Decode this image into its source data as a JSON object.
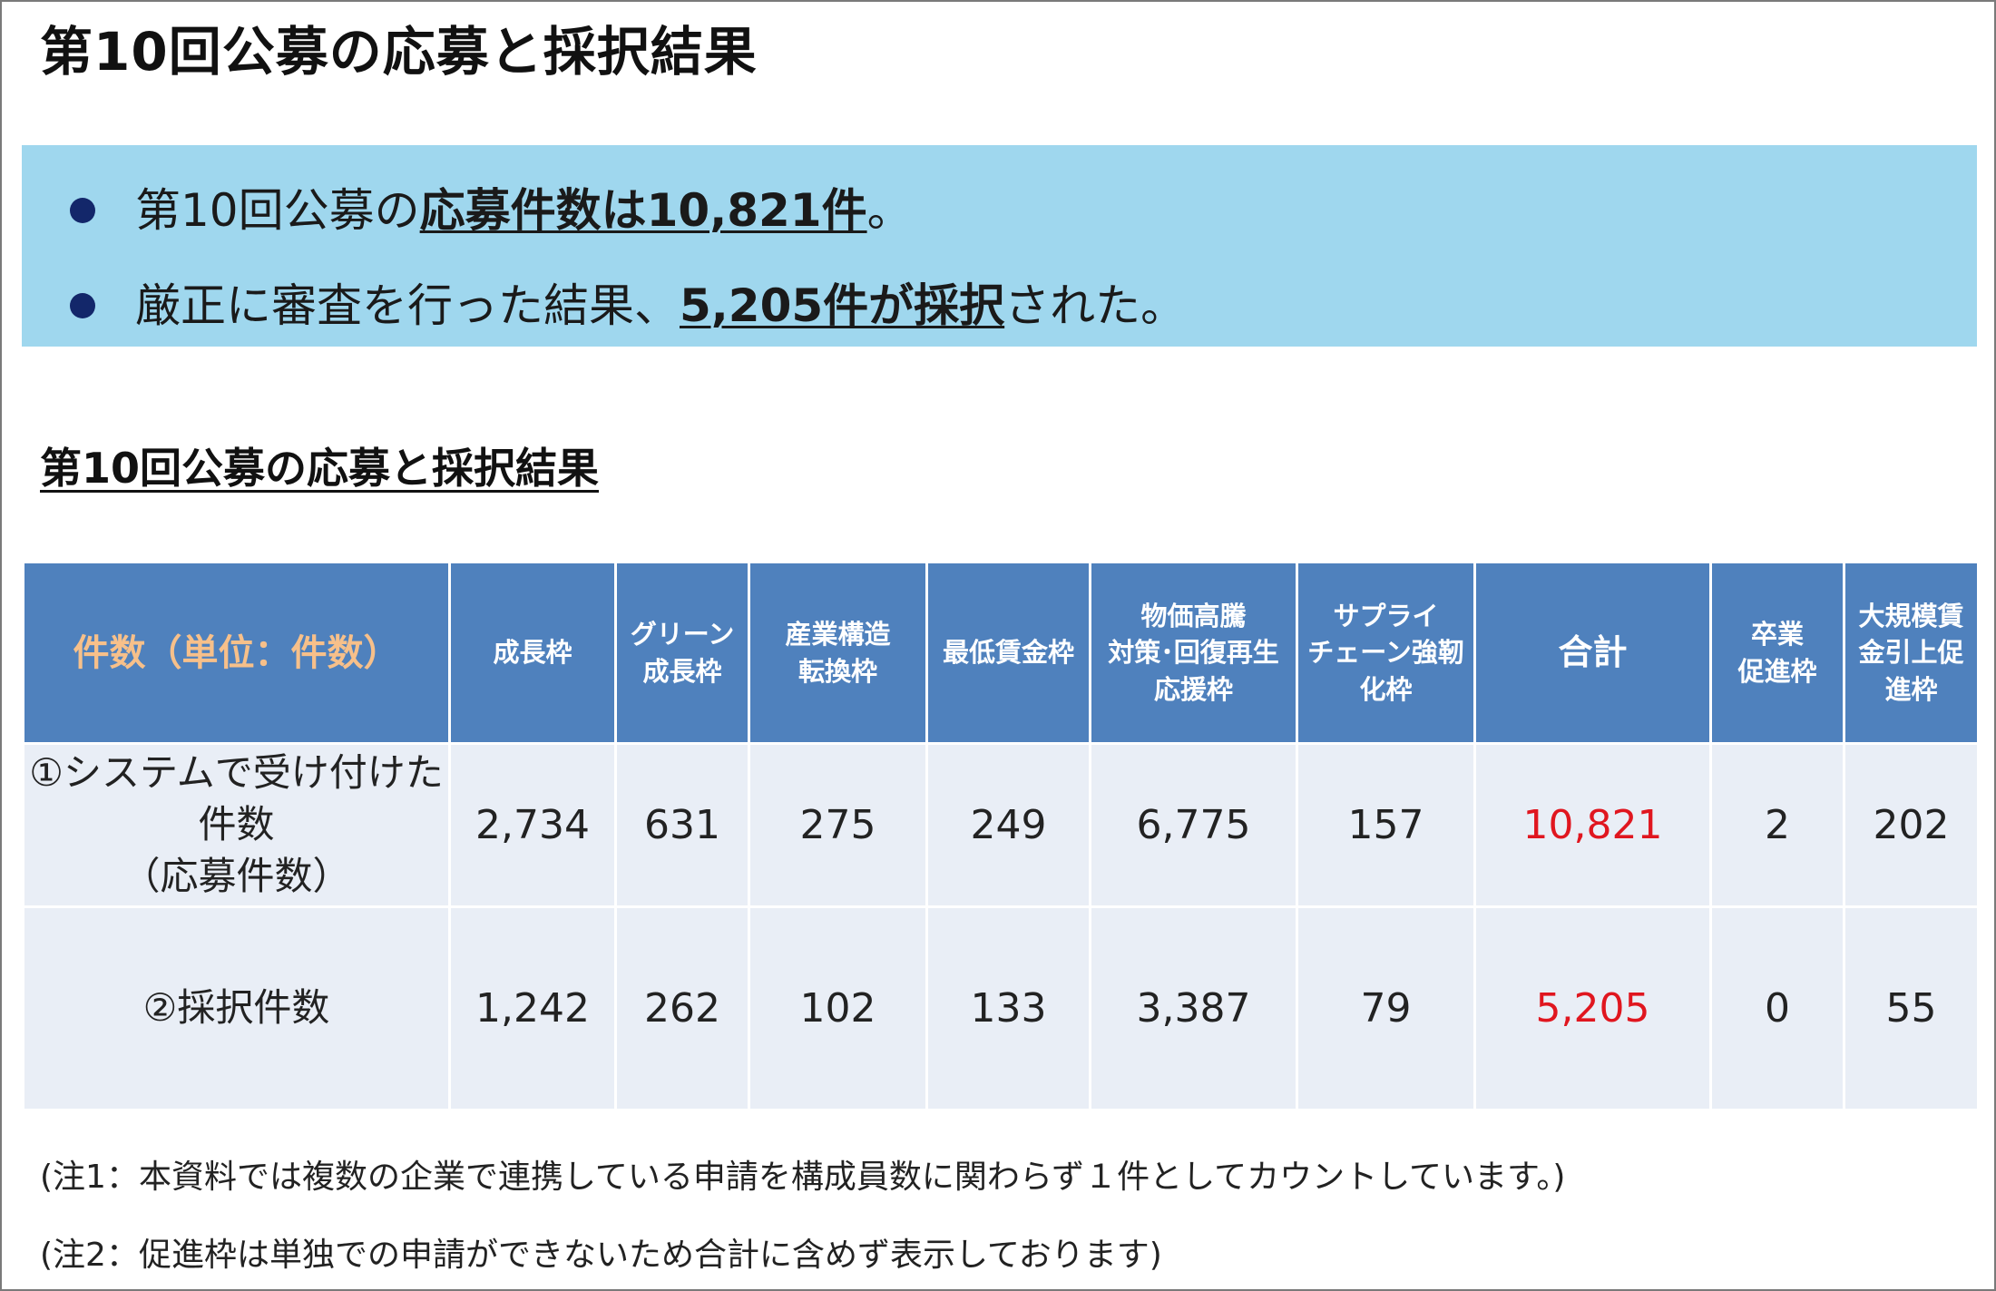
{
  "title": "第10回公募の応募と採択結果",
  "summary": {
    "bullet1": {
      "pre": "第10回公募の",
      "highlight": "応募件数は10,821件",
      "post": "。"
    },
    "bullet2": {
      "pre": "厳正に審査を行った結果、",
      "highlight": "5,205件が採択",
      "post": "された。"
    }
  },
  "section_title": "第10回公募の応募と採択結果",
  "table": {
    "corner": "件数（単位：件数）",
    "columns": [
      [
        "成長枠"
      ],
      [
        "グリーン",
        "成長枠"
      ],
      [
        "産業構造",
        "転換枠"
      ],
      [
        "最低賃金枠"
      ],
      [
        "物価高騰",
        "対策･回復再生",
        "応援枠"
      ],
      [
        "サプライ",
        "チェーン強靭",
        "化枠"
      ],
      [
        "合計"
      ],
      [
        "卒業",
        "促進枠"
      ],
      [
        "大規模賃",
        "金引上促",
        "進枠"
      ]
    ],
    "rows": [
      {
        "label": [
          "①システムで受け付けた",
          "件数",
          "（応募件数）"
        ],
        "values": [
          "2,734",
          "631",
          "275",
          "249",
          "6,775",
          "157",
          "10,821",
          "2",
          "202"
        ]
      },
      {
        "label": [
          "②採択件数"
        ],
        "values": [
          "1,242",
          "262",
          "102",
          "133",
          "3,387",
          "79",
          "5,205",
          "0",
          "55"
        ]
      }
    ],
    "highlight_color": "#e0161f"
  },
  "notes": [
    "(注1：本資料では複数の企業で連携している申請を構成員数に関わらず１件としてカウントしています。)",
    "(注2：促進枠は単独での申請ができないため合計に含めず表示しております)"
  ]
}
